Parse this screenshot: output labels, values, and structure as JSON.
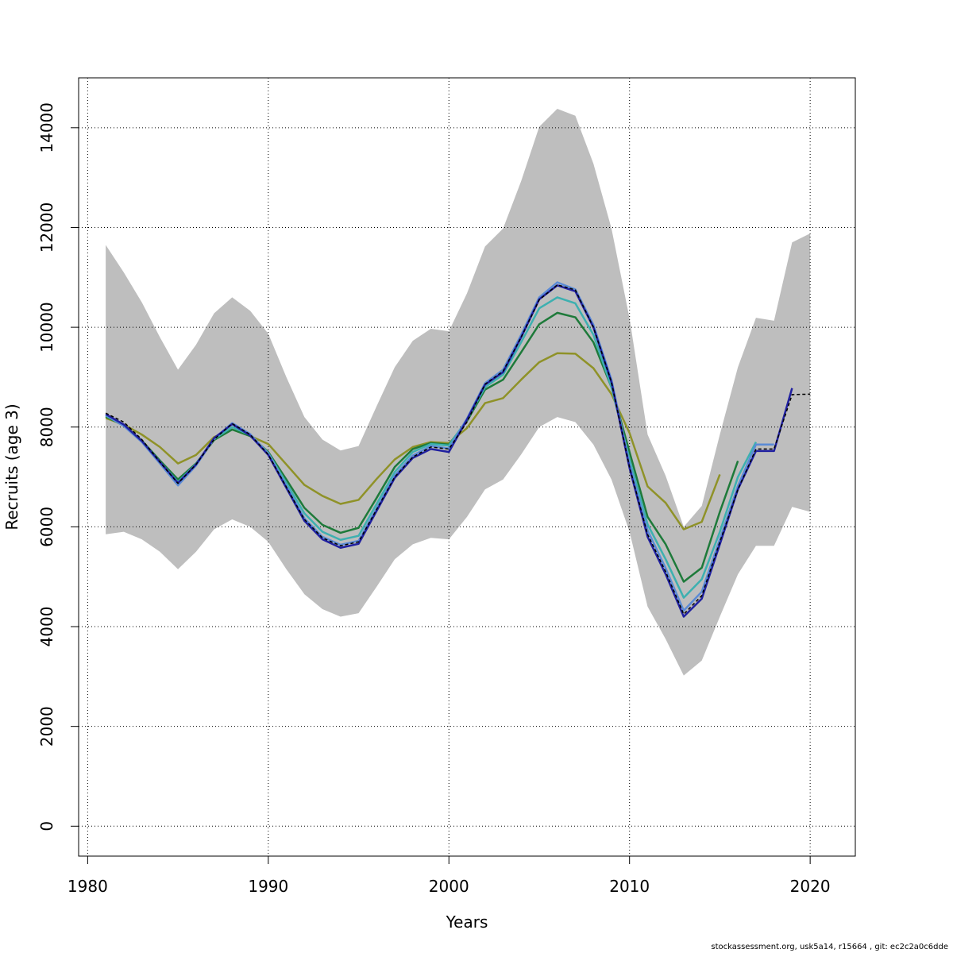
{
  "chart_data": {
    "type": "line",
    "xlabel": "Years",
    "ylabel": "Recruits (age 3)",
    "xlim": [
      1979.5,
      2022.5
    ],
    "ylim": [
      -600,
      15000
    ],
    "xticks": [
      1980,
      1990,
      2000,
      2010,
      2020
    ],
    "yticks": [
      0,
      2000,
      4000,
      6000,
      8000,
      10000,
      12000,
      14000
    ],
    "grid": true,
    "band": {
      "color": "#bebebe",
      "x": [
        1981,
        1982,
        1983,
        1984,
        1985,
        1986,
        1987,
        1988,
        1989,
        1990,
        1991,
        1992,
        1993,
        1994,
        1995,
        1996,
        1997,
        1998,
        1999,
        2000,
        2001,
        2002,
        2003,
        2004,
        2005,
        2006,
        2007,
        2008,
        2009,
        2010,
        2011,
        2012,
        2013,
        2014,
        2015,
        2016,
        2017,
        2018,
        2019,
        2020
      ],
      "lower": [
        5850,
        5900,
        5750,
        5500,
        5150,
        5500,
        5950,
        6150,
        6000,
        5700,
        5150,
        4650,
        4350,
        4200,
        4270,
        4800,
        5350,
        5650,
        5780,
        5750,
        6200,
        6750,
        6950,
        7450,
        8000,
        8200,
        8100,
        7650,
        6950,
        5900,
        4400,
        3750,
        3020,
        3320,
        4200,
        5050,
        5620,
        5620,
        6400,
        6300
      ],
      "upper": [
        11650,
        11100,
        10500,
        9800,
        9150,
        9650,
        10280,
        10600,
        10330,
        9870,
        9000,
        8200,
        7750,
        7530,
        7620,
        8420,
        9200,
        9730,
        9970,
        9920,
        10680,
        11620,
        11980,
        12930,
        14020,
        14380,
        14240,
        13280,
        11980,
        10180,
        7850,
        7020,
        6000,
        6420,
        7850,
        9200,
        10190,
        10130,
        11700,
        11880
      ]
    },
    "series": [
      {
        "color": "#000000",
        "dash": true,
        "x": [
          1981,
          1982,
          1983,
          1984,
          1985,
          1986,
          1987,
          1988,
          1989,
          1990,
          1991,
          1992,
          1993,
          1994,
          1995,
          1996,
          1997,
          1998,
          1999,
          2000,
          2001,
          2002,
          2003,
          2004,
          2005,
          2006,
          2007,
          2008,
          2009,
          2010,
          2011,
          2012,
          2013,
          2014,
          2015,
          2016,
          2017,
          2018,
          2019,
          2020
        ],
        "values": [
          8280,
          8100,
          7750,
          7300,
          6870,
          7250,
          7750,
          8070,
          7850,
          7450,
          6800,
          6150,
          5780,
          5620,
          5700,
          6350,
          7000,
          7400,
          7600,
          7560,
          8100,
          8860,
          9120,
          9800,
          10550,
          10850,
          10750,
          10000,
          8900,
          7200,
          5850,
          5100,
          4250,
          4620,
          5700,
          6750,
          7560,
          7560,
          8650,
          8660
        ]
      },
      {
        "color": "#2020a0",
        "x": [
          1981,
          1982,
          1983,
          1984,
          1985,
          1986,
          1987,
          1988,
          1989,
          1990,
          1991,
          1992,
          1993,
          1994,
          1995,
          1996,
          1997,
          1998,
          1999,
          2000,
          2001,
          2002,
          2003,
          2004,
          2005,
          2006,
          2007,
          2008,
          2009,
          2010,
          2011,
          2012,
          2013,
          2014,
          2015,
          2016,
          2017,
          2018,
          2019
        ],
        "values": [
          8260,
          8050,
          7720,
          7300,
          6880,
          7250,
          7780,
          8060,
          7830,
          7440,
          6780,
          6120,
          5750,
          5580,
          5660,
          6320,
          6980,
          7380,
          7560,
          7500,
          8150,
          8850,
          9100,
          9800,
          10560,
          10840,
          10720,
          10000,
          8900,
          7180,
          5800,
          5050,
          4200,
          4560,
          5650,
          6750,
          7520,
          7520,
          8780
        ]
      },
      {
        "color": "#5b8bd6",
        "x": [
          1981,
          1982,
          1983,
          1984,
          1985,
          1986,
          1987,
          1988,
          1989,
          1990,
          1991,
          1992,
          1993,
          1994,
          1995,
          1996,
          1997,
          1998,
          1999,
          2000,
          2001,
          2002,
          2003,
          2004,
          2005,
          2006,
          2007,
          2008,
          2009,
          2010,
          2011,
          2012,
          2013,
          2014,
          2015,
          2016,
          2017,
          2018
        ],
        "values": [
          8240,
          8020,
          7700,
          7270,
          6830,
          7230,
          7760,
          8080,
          7860,
          7470,
          6820,
          6170,
          5800,
          5640,
          5720,
          6370,
          7030,
          7430,
          7620,
          7570,
          8170,
          8880,
          9150,
          9850,
          10600,
          10900,
          10760,
          10050,
          8950,
          7250,
          5930,
          5170,
          4320,
          4700,
          5750,
          6820,
          7650,
          7650
        ]
      },
      {
        "color": "#3db0b0",
        "x": [
          1981,
          1982,
          1983,
          1984,
          1985,
          1986,
          1987,
          1988,
          1989,
          1990,
          1991,
          1992,
          1993,
          1994,
          1995,
          1996,
          1997,
          1998,
          1999,
          2000,
          2001,
          2002,
          2003,
          2004,
          2005,
          2006,
          2007,
          2008,
          2009,
          2010,
          2011,
          2012,
          2013,
          2014,
          2015,
          2016,
          2017
        ],
        "values": [
          8230,
          8030,
          7720,
          7300,
          6900,
          7260,
          7760,
          8000,
          7840,
          7480,
          6880,
          6270,
          5900,
          5740,
          5820,
          6460,
          7100,
          7500,
          7660,
          7630,
          8150,
          8800,
          9050,
          9700,
          10380,
          10600,
          10480,
          9850,
          8800,
          7350,
          6050,
          5350,
          4580,
          4950,
          5900,
          7000,
          7700
        ]
      },
      {
        "color": "#1e7a3a",
        "x": [
          1981,
          1982,
          1983,
          1984,
          1985,
          1986,
          1987,
          1988,
          1989,
          1990,
          1991,
          1992,
          1993,
          1994,
          1995,
          1996,
          1997,
          1998,
          1999,
          2000,
          2001,
          2002,
          2003,
          2004,
          2005,
          2006,
          2007,
          2008,
          2009,
          2010,
          2011,
          2012,
          2013,
          2014,
          2015,
          2016
        ],
        "values": [
          8210,
          8030,
          7730,
          7330,
          6950,
          7270,
          7740,
          7950,
          7820,
          7500,
          6950,
          6380,
          6040,
          5880,
          5980,
          6580,
          7200,
          7560,
          7680,
          7650,
          8120,
          8750,
          8950,
          9500,
          10060,
          10290,
          10200,
          9700,
          8800,
          7500,
          6200,
          5650,
          4900,
          5180,
          6300,
          7320
        ]
      },
      {
        "color": "#8f9228",
        "x": [
          1981,
          1982,
          1983,
          1984,
          1985,
          1986,
          1987,
          1988,
          1989,
          1990,
          1991,
          1992,
          1993,
          1994,
          1995,
          1996,
          1997,
          1998,
          1999,
          2000,
          2001,
          2002,
          2003,
          2004,
          2005,
          2006,
          2007,
          2008,
          2009,
          2010,
          2011,
          2012,
          2013,
          2014,
          2015
        ],
        "values": [
          8180,
          8050,
          7850,
          7600,
          7270,
          7440,
          7800,
          7950,
          7820,
          7660,
          7250,
          6840,
          6620,
          6460,
          6540,
          6960,
          7350,
          7600,
          7700,
          7680,
          7980,
          8480,
          8580,
          8950,
          9300,
          9480,
          9470,
          9180,
          8660,
          7880,
          6810,
          6480,
          5950,
          6100,
          7050
        ]
      }
    ],
    "footer": "stockassessment.org, usk5a14, r15664 , git: ec2c2a0c6dde"
  }
}
